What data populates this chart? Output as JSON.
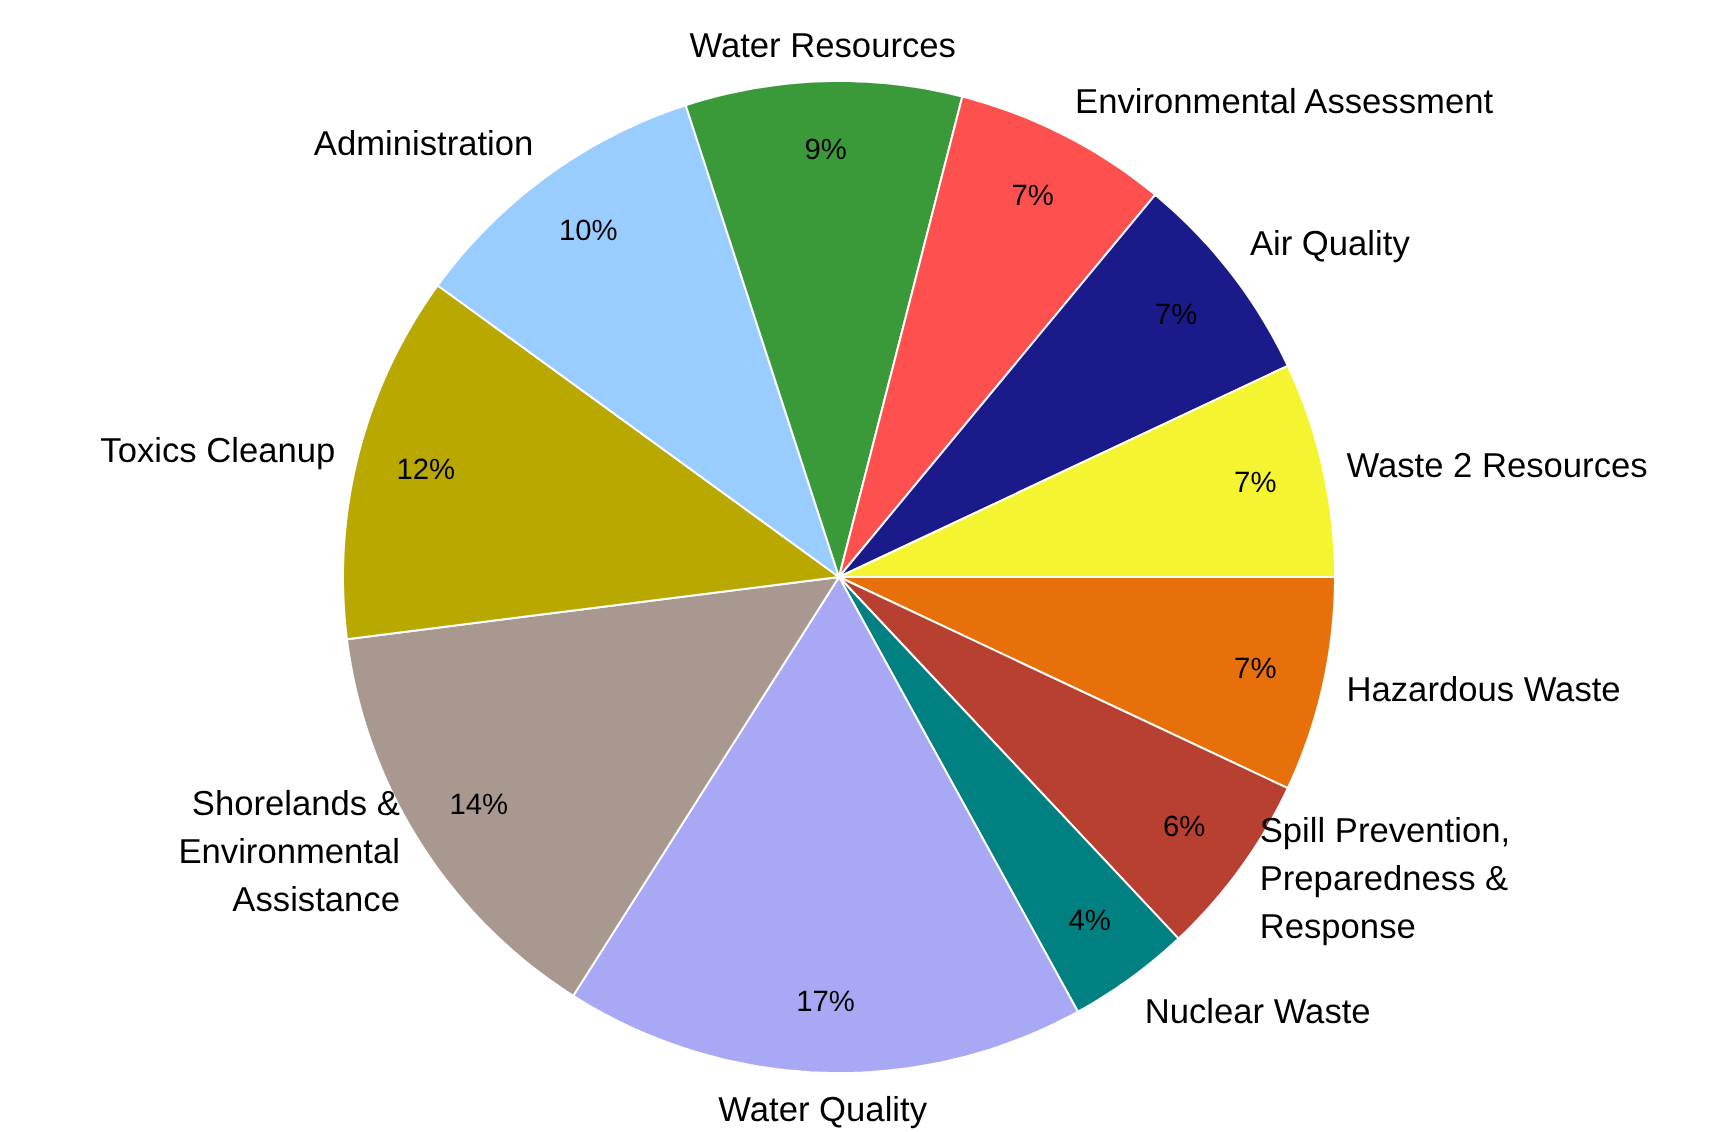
{
  "chart_data": {
    "type": "pie",
    "categories": [
      "Hazardous Waste",
      "Spill Prevention,\nPreparedness &\nResponse",
      "Nuclear Waste",
      "Water Quality",
      "Shorelands &\nEnvironmental\nAssistance",
      "Toxics Cleanup",
      "Administration",
      "Water Resources",
      "Environmental Assessment",
      "Air Quality",
      "Waste 2 Resources"
    ],
    "values": [
      7,
      6,
      4,
      17,
      14,
      12,
      10,
      9,
      7,
      7,
      7
    ],
    "value_labels": [
      "7%",
      "6%",
      "4%",
      "17%",
      "14%",
      "12%",
      "10%",
      "9%",
      "7%",
      "7%",
      "7%"
    ],
    "colors": [
      "#e8700a",
      "#b84030",
      "#008080",
      "#a8a8f4",
      "#a89890",
      "#b8a800",
      "#99ccff",
      "#3a9a3a",
      "#ff5050",
      "#1a1a8a",
      "#f4f430"
    ]
  }
}
